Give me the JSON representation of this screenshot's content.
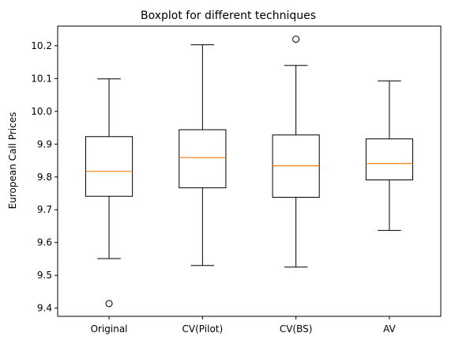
{
  "chart_data": {
    "type": "boxplot",
    "title": "Boxplot for different techniques",
    "xlabel": "",
    "ylabel": "European Call Prices",
    "ylim": [
      9.375,
      10.26
    ],
    "yticks": [
      9.4,
      9.5,
      9.6,
      9.7,
      9.8,
      9.9,
      10.0,
      10.1,
      10.2
    ],
    "ytick_labels": [
      "9.4",
      "9.5",
      "9.6",
      "9.7",
      "9.8",
      "9.9",
      "10.0",
      "10.1",
      "10.2"
    ],
    "categories": [
      "Original",
      "CV(Pilot)",
      "CV(BS)",
      "AV"
    ],
    "boxes": [
      {
        "whisker_low": 9.551,
        "q1": 9.741,
        "median": 9.817,
        "q3": 9.923,
        "whisker_high": 10.099,
        "outliers": [
          9.414
        ]
      },
      {
        "whisker_low": 9.53,
        "q1": 9.767,
        "median": 9.859,
        "q3": 9.944,
        "whisker_high": 10.203,
        "outliers": []
      },
      {
        "whisker_low": 9.525,
        "q1": 9.738,
        "median": 9.834,
        "q3": 9.928,
        "whisker_high": 10.14,
        "outliers": [
          10.22
        ]
      },
      {
        "whisker_low": 9.637,
        "q1": 9.791,
        "median": 9.841,
        "q3": 9.916,
        "whisker_high": 10.093,
        "outliers": []
      }
    ],
    "grid": false,
    "colors": {
      "box": "#000000",
      "median": "#ff7f0e",
      "outlier": "#000000",
      "background": "#ffffff"
    }
  }
}
